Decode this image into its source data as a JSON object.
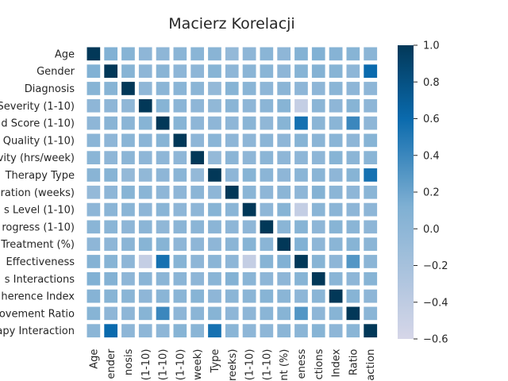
{
  "chart_data": {
    "type": "heatmap",
    "title": "Macierz Korelacji",
    "row_labels": [
      "Age",
      "Gender",
      "Diagnosis",
      "Severity (1-10)",
      "d Score (1-10)",
      "Quality (1-10)",
      "vity (hrs/week)",
      "Therapy Type",
      "ration (weeks)",
      "s Level (1-10)",
      "rogress (1-10)",
      "Treatment (%)",
      "Effectiveness",
      "s Interactions",
      "herence Index",
      "ovement Ratio",
      "apy Interaction"
    ],
    "col_labels": [
      "Age",
      "ender",
      "nosis",
      "(1-10)",
      "(1-10)",
      "(1-10)",
      "week)",
      "Type",
      "reeks)",
      "(1-10)",
      "(1-10)",
      "nt (%)",
      "eness",
      "ctions",
      "Index",
      "Ratio",
      "action"
    ],
    "values": [
      [
        1.0,
        0.1,
        0.05,
        0.0,
        0.0,
        0.02,
        0.03,
        0.04,
        -0.05,
        0.0,
        0.03,
        0.0,
        0.08,
        0.1,
        0.06,
        0.05,
        0.02
      ],
      [
        0.1,
        1.0,
        0.05,
        0.0,
        0.04,
        0.0,
        0.0,
        0.05,
        0.0,
        0.02,
        0.03,
        0.0,
        0.05,
        0.08,
        0.05,
        0.0,
        0.6
      ],
      [
        0.05,
        0.05,
        1.0,
        -0.02,
        0.02,
        0.03,
        0.02,
        -0.05,
        0.05,
        0.03,
        0.0,
        0.02,
        0.0,
        0.0,
        0.03,
        0.0,
        0.0
      ],
      [
        0.0,
        0.0,
        -0.02,
        1.0,
        0.05,
        0.02,
        0.0,
        -0.03,
        0.03,
        0.0,
        0.02,
        0.05,
        -0.45,
        0.02,
        0.0,
        0.05,
        0.0
      ],
      [
        0.0,
        0.04,
        0.02,
        0.05,
        1.0,
        0.05,
        0.0,
        0.0,
        0.0,
        0.03,
        -0.02,
        0.05,
        0.55,
        0.02,
        0.03,
        0.4,
        0.0
      ],
      [
        0.02,
        0.0,
        0.03,
        0.02,
        0.05,
        1.0,
        0.0,
        0.03,
        0.0,
        0.0,
        0.02,
        0.0,
        0.05,
        0.02,
        0.03,
        0.0,
        0.05
      ],
      [
        0.03,
        0.0,
        0.02,
        0.0,
        0.0,
        0.0,
        1.0,
        -0.05,
        0.02,
        0.0,
        0.02,
        0.0,
        0.0,
        0.0,
        0.05,
        0.02,
        0.03
      ],
      [
        0.04,
        0.05,
        -0.05,
        -0.03,
        0.0,
        0.03,
        -0.05,
        1.0,
        0.0,
        0.05,
        0.02,
        0.0,
        0.02,
        0.03,
        0.0,
        0.05,
        0.55
      ],
      [
        -0.05,
        0.0,
        0.05,
        0.03,
        0.0,
        0.0,
        0.02,
        0.0,
        1.0,
        0.03,
        0.0,
        0.02,
        0.0,
        0.08,
        0.02,
        0.0,
        0.03
      ],
      [
        0.0,
        0.02,
        0.03,
        0.0,
        0.03,
        0.0,
        0.0,
        0.05,
        0.03,
        1.0,
        0.0,
        0.05,
        -0.45,
        0.03,
        0.02,
        0.0,
        0.0
      ],
      [
        0.03,
        0.03,
        0.0,
        0.02,
        -0.02,
        0.02,
        0.02,
        0.02,
        0.0,
        0.0,
        1.0,
        0.03,
        0.05,
        0.0,
        0.05,
        0.03,
        0.0
      ],
      [
        0.0,
        0.0,
        0.02,
        0.05,
        0.05,
        0.0,
        0.0,
        0.0,
        0.02,
        0.05,
        0.03,
        1.0,
        0.1,
        0.0,
        0.03,
        0.05,
        0.02
      ],
      [
        0.08,
        0.05,
        0.0,
        -0.45,
        0.55,
        0.05,
        0.0,
        0.02,
        0.0,
        -0.45,
        0.05,
        0.1,
        1.0,
        0.05,
        0.0,
        0.3,
        0.02
      ],
      [
        0.1,
        0.08,
        0.0,
        0.02,
        0.02,
        0.02,
        0.0,
        0.03,
        0.08,
        0.03,
        0.0,
        0.0,
        0.05,
        1.0,
        0.03,
        0.0,
        0.05
      ],
      [
        0.06,
        0.05,
        0.03,
        0.0,
        0.03,
        0.03,
        0.05,
        0.0,
        0.02,
        0.02,
        0.05,
        0.03,
        0.0,
        0.03,
        1.0,
        0.05,
        0.0
      ],
      [
        0.05,
        0.0,
        0.0,
        0.05,
        0.4,
        0.0,
        0.02,
        0.05,
        0.0,
        0.0,
        0.03,
        0.05,
        0.3,
        0.0,
        0.05,
        1.0,
        0.03
      ],
      [
        0.02,
        0.6,
        0.0,
        0.0,
        0.0,
        0.05,
        0.03,
        0.55,
        0.03,
        0.0,
        0.0,
        0.02,
        0.02,
        0.05,
        0.0,
        0.03,
        1.0
      ]
    ],
    "vmin": -0.6,
    "vmax": 1.0,
    "colorbar_ticks": [
      "1.0",
      "0.8",
      "0.6",
      "0.4",
      "0.2",
      "0.0",
      "−0.2",
      "−0.4",
      "−0.6"
    ],
    "colormap": [
      "#d6d6e8",
      "#7fb0d3",
      "#0a6aad",
      "#023858"
    ],
    "grid_line_color": "#ffffff",
    "legend": "colorbar-right"
  }
}
